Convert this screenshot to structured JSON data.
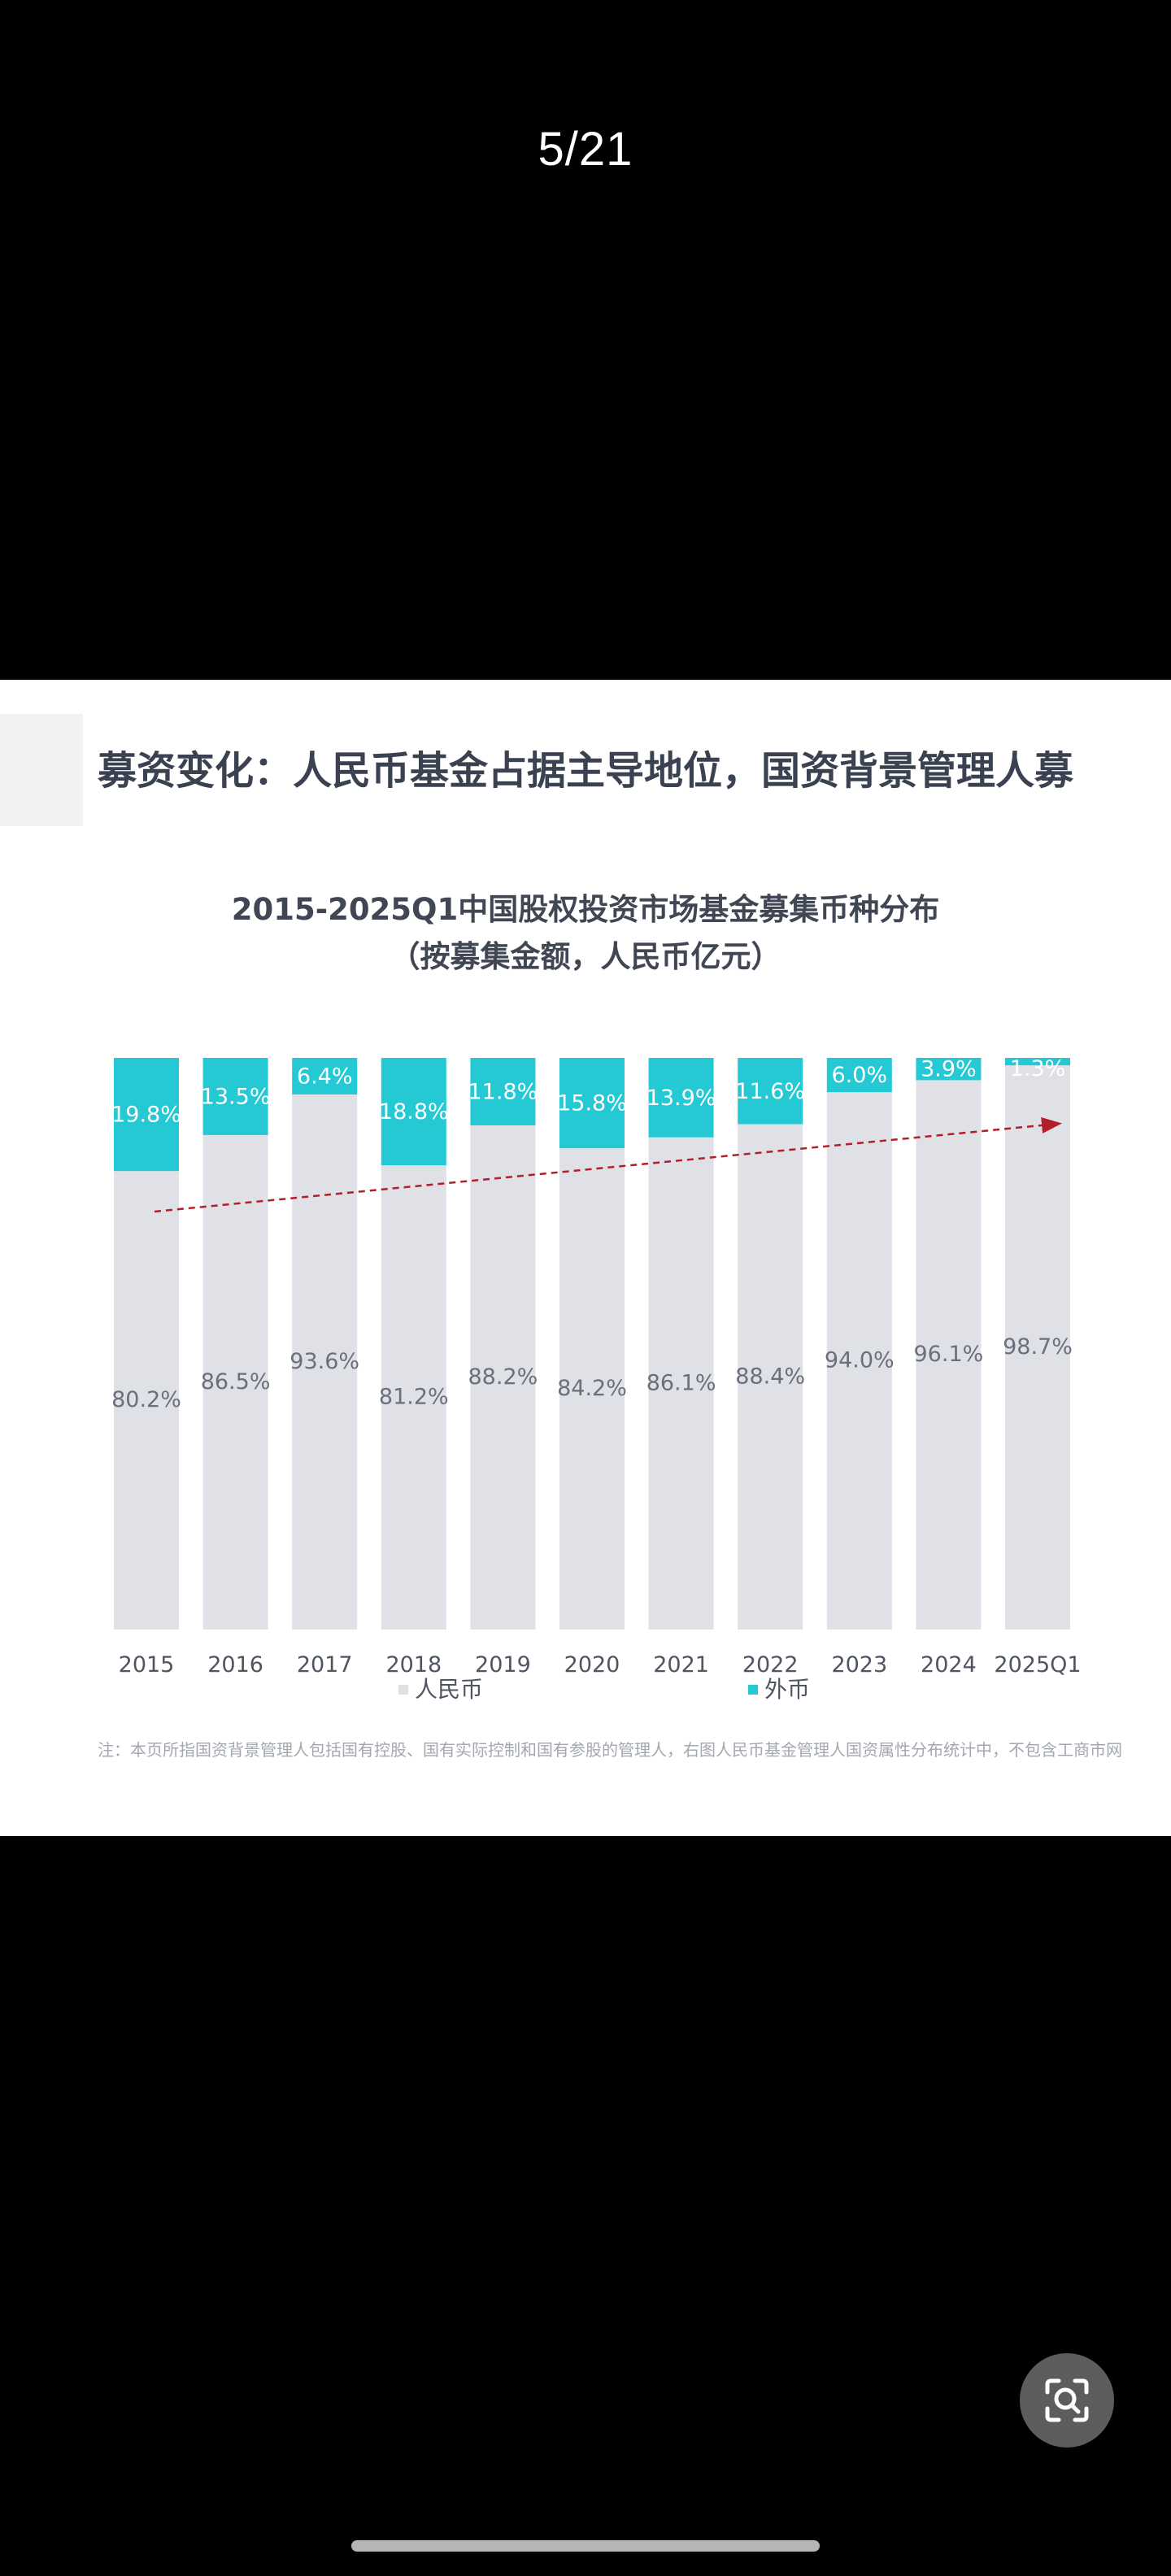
{
  "viewer": {
    "page_counter": "5/21",
    "lens_icon": "image-search-icon"
  },
  "slide": {
    "heading": "募资变化：人民币基金占据主导地位，国资背景管理人募",
    "footnote": "注：本页所指国资背景管理人包括国有控股、国有实际控制和国有参股的管理人，右图人民币基金管理人国资属性分布统计中，不包含工商市网"
  },
  "chart_data": {
    "type": "bar",
    "stacked": true,
    "title": "2015-2025Q1中国股权投资市场基金募集币种分布",
    "subtitle": "（按募集金额，人民币亿元）",
    "categories": [
      "2015",
      "2016",
      "2017",
      "2018",
      "2019",
      "2020",
      "2021",
      "2022",
      "2023",
      "2024",
      "2025Q1"
    ],
    "series": [
      {
        "name": "人民币",
        "color": "#dfe1e7",
        "values": [
          80.2,
          86.5,
          93.6,
          81.2,
          88.2,
          84.2,
          86.1,
          88.4,
          94.0,
          96.1,
          98.7
        ],
        "labels": [
          "80.2%",
          "86.5%",
          "93.6%",
          "81.2%",
          "88.2%",
          "84.2%",
          "86.1%",
          "88.4%",
          "94.0%",
          "96.1%",
          "98.7%"
        ]
      },
      {
        "name": "外币",
        "color": "#25c9d4",
        "values": [
          19.8,
          13.5,
          6.4,
          18.8,
          11.8,
          15.8,
          13.9,
          11.6,
          6.0,
          3.9,
          1.3
        ],
        "labels": [
          "19.8%",
          "13.5%",
          "6.4%",
          "18.8%",
          "11.8%",
          "15.8%",
          "13.9%",
          "11.6%",
          "6.0%",
          "3.9%",
          "1.3%"
        ]
      }
    ],
    "ylim": [
      0,
      100
    ],
    "unit": "%",
    "grid": false,
    "legend": "bottom-center",
    "trend_arrow": {
      "from_category": "2015",
      "to_category": "2025Q1",
      "color": "#b21f2a",
      "style": "dashed"
    }
  }
}
